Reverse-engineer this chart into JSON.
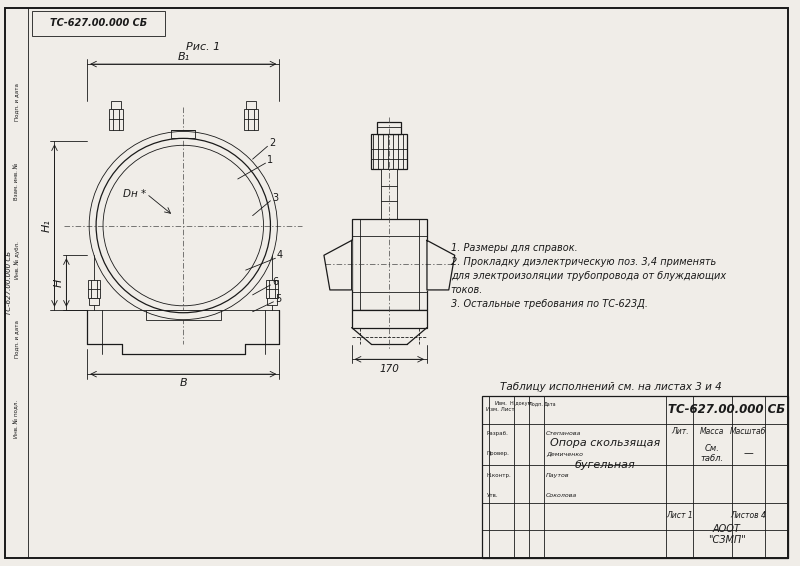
{
  "bg_color": "#f0ede8",
  "line_color": "#1a1a1a",
  "title_box_text": "ТС-627.00.000 СБ",
  "fig_label": "Рис. 1",
  "notes": [
    "1. Размеры для справок.",
    "2. Прокладку диэлектрическую поз. 3,4 применять",
    "для электроизоляции трубопровода от блуждающих",
    "токов.",
    "3. Остальные требования по ТС-623Д."
  ],
  "table_note": "Таблицу исполнений см. на листах 3 и 4",
  "stamp_title": "ТС-627.00.000 СБ",
  "stamp_name1": "Опора скользящая",
  "stamp_name2": "бугельная",
  "stamp_mass": "См.\nтабл.",
  "stamp_scale": "—",
  "stamp_sheet": "Лист 1",
  "stamp_sheets": "Листов 4",
  "stamp_org": "АООТ\n\"СЗМП\"",
  "stamp_lit": "Лит.",
  "stamp_massa": "Масса",
  "stamp_masshtab": "Масштаб",
  "rotated_label": "ТС-627.00.000 СБ",
  "dim_B1": "B₁",
  "dim_B": "B",
  "dim_H": "H",
  "dim_H1": "H₁",
  "dim_Dn": "Dн *",
  "dim_170": "170",
  "pos1": "1",
  "pos2": "2",
  "pos3": "3",
  "pos4": "4",
  "pos5": "5",
  "pos6": "6",
  "vertical_texts": [
    "Подп. и дата",
    "Взам. инв. №",
    "Инв. № дубл.",
    "Подп. и дата",
    "Инв. № подл."
  ],
  "row_labels": [
    "Изм. Лист",
    "Разраб.",
    "Провер.",
    "Н.контр.",
    "Утв."
  ],
  "name_labels": [
    "Степанова",
    "Демиченко",
    "Паутов",
    "Соколова"
  ]
}
